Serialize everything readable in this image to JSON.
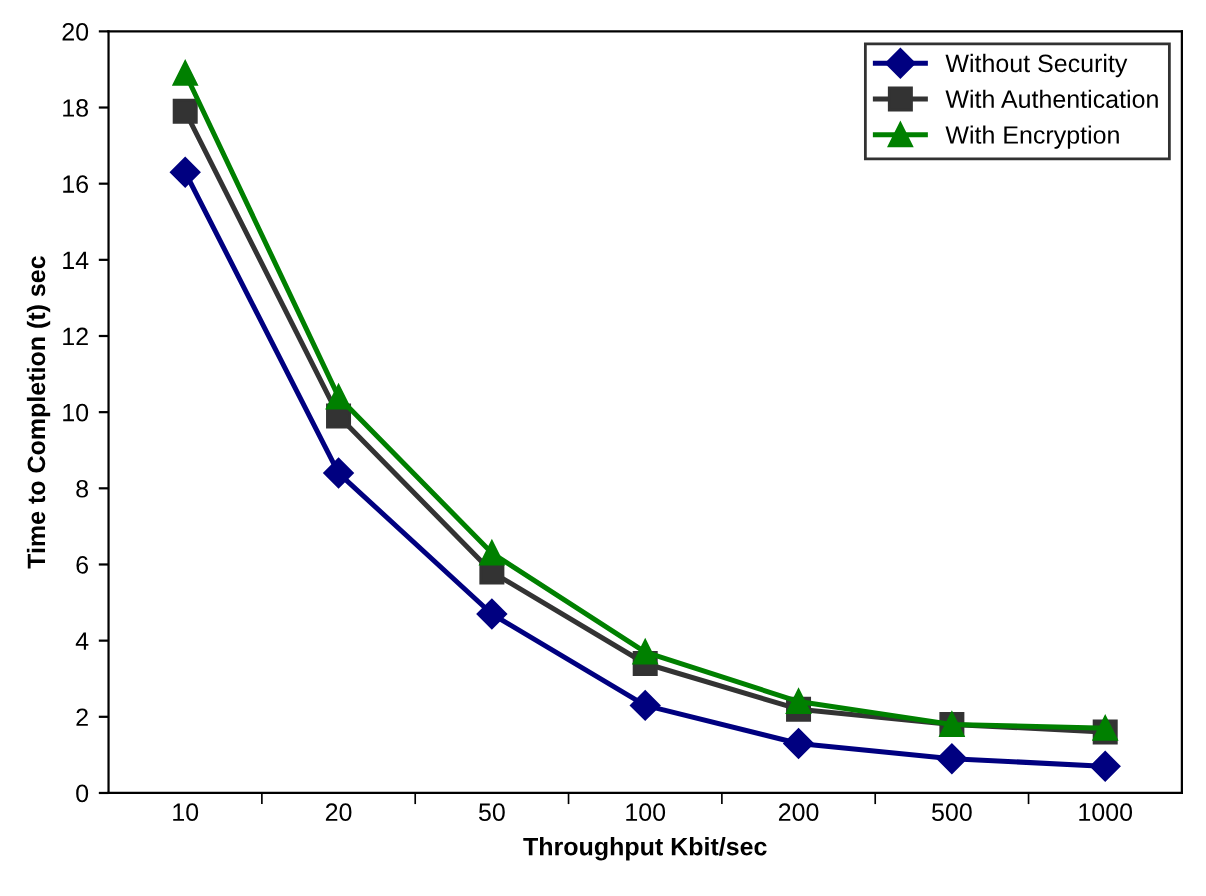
{
  "chart_data": {
    "type": "line",
    "xlabel": "Throughput Kbit/sec",
    "ylabel": "Time to Completion (t) sec",
    "categories": [
      "10",
      "20",
      "50",
      "100",
      "200",
      "500",
      "1000"
    ],
    "series": [
      {
        "name": "Without Security",
        "color": "#000080",
        "marker": "diamond",
        "values": [
          16.3,
          8.4,
          4.7,
          2.3,
          1.3,
          0.9,
          0.7
        ]
      },
      {
        "name": "With Authentication",
        "color": "#333333",
        "marker": "square",
        "values": [
          17.9,
          9.9,
          5.8,
          3.4,
          2.2,
          1.8,
          1.6
        ]
      },
      {
        "name": "With Encryption",
        "color": "#008000",
        "marker": "triangle",
        "values": [
          18.9,
          10.4,
          6.3,
          3.7,
          2.4,
          1.8,
          1.7
        ]
      }
    ],
    "ylim": [
      0,
      20
    ],
    "yticks": [
      0,
      2,
      4,
      6,
      8,
      10,
      12,
      14,
      16,
      18,
      20
    ],
    "grid": false,
    "legend": "top right",
    "line_style": "solid"
  }
}
